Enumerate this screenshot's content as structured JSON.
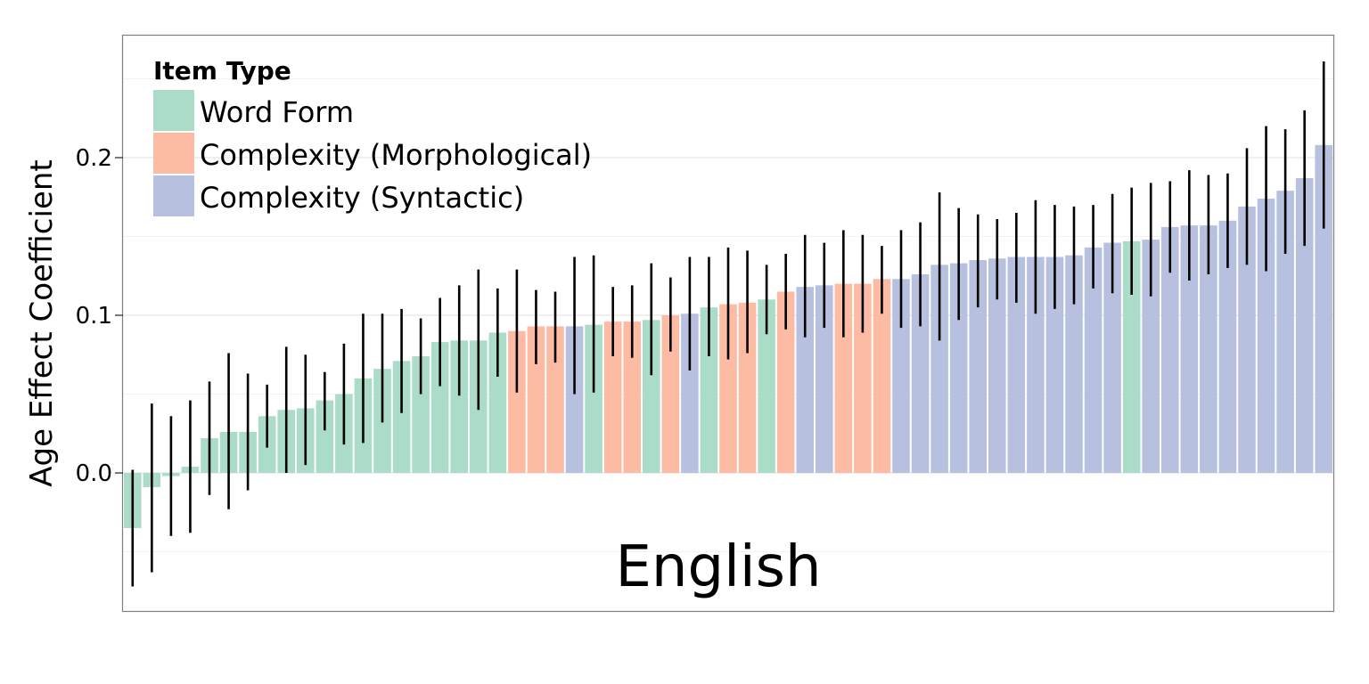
{
  "chart_data": {
    "type": "bar",
    "panel_label": "English",
    "ylabel": "Age Effect Coefficient",
    "xlabel": "",
    "ylim": [
      -0.088,
      0.277
    ],
    "yticks": [
      0.0,
      0.1,
      0.2
    ],
    "ytick_labels": [
      "0.0",
      "0.1",
      "0.2"
    ],
    "grid": true,
    "legend": {
      "title": "Item Type",
      "placement": "top-left",
      "entries": [
        {
          "key": "word_form",
          "label": "Word Form",
          "color": "#aadcc8"
        },
        {
          "key": "morphological",
          "label": "Complexity (Morphological)",
          "color": "#fdbba4"
        },
        {
          "key": "syntactic",
          "label": "Complexity (Syntactic)",
          "color": "#b7c1df"
        }
      ]
    },
    "colors": {
      "word_form": "#aadcc8",
      "morphological": "#fdbba4",
      "syntactic": "#b7c1df",
      "error_bar": "#000000",
      "grid": "#ebebeb",
      "panel_border": "#7f7f7f"
    },
    "bars": [
      {
        "type": "word_form",
        "value": -0.035,
        "lo": -0.072,
        "hi": 0.002
      },
      {
        "type": "word_form",
        "value": -0.009,
        "lo": -0.063,
        "hi": 0.044
      },
      {
        "type": "word_form",
        "value": -0.002,
        "lo": -0.04,
        "hi": 0.036
      },
      {
        "type": "word_form",
        "value": 0.004,
        "lo": -0.038,
        "hi": 0.046
      },
      {
        "type": "word_form",
        "value": 0.022,
        "lo": -0.014,
        "hi": 0.058
      },
      {
        "type": "word_form",
        "value": 0.026,
        "lo": -0.023,
        "hi": 0.076
      },
      {
        "type": "word_form",
        "value": 0.026,
        "lo": -0.011,
        "hi": 0.063
      },
      {
        "type": "word_form",
        "value": 0.036,
        "lo": 0.016,
        "hi": 0.056
      },
      {
        "type": "word_form",
        "value": 0.04,
        "lo": 0.0,
        "hi": 0.08
      },
      {
        "type": "word_form",
        "value": 0.041,
        "lo": 0.005,
        "hi": 0.075
      },
      {
        "type": "word_form",
        "value": 0.046,
        "lo": 0.027,
        "hi": 0.064
      },
      {
        "type": "word_form",
        "value": 0.05,
        "lo": 0.018,
        "hi": 0.082
      },
      {
        "type": "word_form",
        "value": 0.06,
        "lo": 0.019,
        "hi": 0.101
      },
      {
        "type": "word_form",
        "value": 0.066,
        "lo": 0.032,
        "hi": 0.101
      },
      {
        "type": "word_form",
        "value": 0.071,
        "lo": 0.038,
        "hi": 0.104
      },
      {
        "type": "word_form",
        "value": 0.074,
        "lo": 0.05,
        "hi": 0.098
      },
      {
        "type": "word_form",
        "value": 0.083,
        "lo": 0.055,
        "hi": 0.111
      },
      {
        "type": "word_form",
        "value": 0.084,
        "lo": 0.049,
        "hi": 0.119
      },
      {
        "type": "word_form",
        "value": 0.084,
        "lo": 0.04,
        "hi": 0.129
      },
      {
        "type": "word_form",
        "value": 0.089,
        "lo": 0.061,
        "hi": 0.117
      },
      {
        "type": "morphological",
        "value": 0.09,
        "lo": 0.051,
        "hi": 0.129
      },
      {
        "type": "morphological",
        "value": 0.093,
        "lo": 0.069,
        "hi": 0.116
      },
      {
        "type": "morphological",
        "value": 0.093,
        "lo": 0.07,
        "hi": 0.115
      },
      {
        "type": "syntactic",
        "value": 0.093,
        "lo": 0.05,
        "hi": 0.137
      },
      {
        "type": "word_form",
        "value": 0.094,
        "lo": 0.051,
        "hi": 0.138
      },
      {
        "type": "morphological",
        "value": 0.096,
        "lo": 0.074,
        "hi": 0.118
      },
      {
        "type": "morphological",
        "value": 0.096,
        "lo": 0.073,
        "hi": 0.119
      },
      {
        "type": "word_form",
        "value": 0.097,
        "lo": 0.062,
        "hi": 0.133
      },
      {
        "type": "morphological",
        "value": 0.1,
        "lo": 0.077,
        "hi": 0.124
      },
      {
        "type": "syntactic",
        "value": 0.101,
        "lo": 0.065,
        "hi": 0.137
      },
      {
        "type": "word_form",
        "value": 0.105,
        "lo": 0.074,
        "hi": 0.137
      },
      {
        "type": "morphological",
        "value": 0.107,
        "lo": 0.072,
        "hi": 0.143
      },
      {
        "type": "morphological",
        "value": 0.108,
        "lo": 0.076,
        "hi": 0.141
      },
      {
        "type": "word_form",
        "value": 0.11,
        "lo": 0.088,
        "hi": 0.132
      },
      {
        "type": "morphological",
        "value": 0.115,
        "lo": 0.091,
        "hi": 0.139
      },
      {
        "type": "syntactic",
        "value": 0.118,
        "lo": 0.086,
        "hi": 0.151
      },
      {
        "type": "syntactic",
        "value": 0.119,
        "lo": 0.092,
        "hi": 0.146
      },
      {
        "type": "morphological",
        "value": 0.12,
        "lo": 0.086,
        "hi": 0.154
      },
      {
        "type": "morphological",
        "value": 0.12,
        "lo": 0.089,
        "hi": 0.151
      },
      {
        "type": "morphological",
        "value": 0.123,
        "lo": 0.101,
        "hi": 0.144
      },
      {
        "type": "syntactic",
        "value": 0.123,
        "lo": 0.092,
        "hi": 0.154
      },
      {
        "type": "syntactic",
        "value": 0.126,
        "lo": 0.093,
        "hi": 0.159
      },
      {
        "type": "syntactic",
        "value": 0.132,
        "lo": 0.084,
        "hi": 0.178
      },
      {
        "type": "syntactic",
        "value": 0.133,
        "lo": 0.097,
        "hi": 0.168
      },
      {
        "type": "syntactic",
        "value": 0.135,
        "lo": 0.105,
        "hi": 0.164
      },
      {
        "type": "syntactic",
        "value": 0.136,
        "lo": 0.11,
        "hi": 0.161
      },
      {
        "type": "syntactic",
        "value": 0.137,
        "lo": 0.108,
        "hi": 0.165
      },
      {
        "type": "syntactic",
        "value": 0.137,
        "lo": 0.101,
        "hi": 0.173
      },
      {
        "type": "syntactic",
        "value": 0.137,
        "lo": 0.104,
        "hi": 0.17
      },
      {
        "type": "syntactic",
        "value": 0.138,
        "lo": 0.107,
        "hi": 0.169
      },
      {
        "type": "syntactic",
        "value": 0.143,
        "lo": 0.117,
        "hi": 0.17
      },
      {
        "type": "syntactic",
        "value": 0.146,
        "lo": 0.114,
        "hi": 0.177
      },
      {
        "type": "word_form",
        "value": 0.147,
        "lo": 0.113,
        "hi": 0.181
      },
      {
        "type": "syntactic",
        "value": 0.148,
        "lo": 0.112,
        "hi": 0.184
      },
      {
        "type": "syntactic",
        "value": 0.156,
        "lo": 0.127,
        "hi": 0.185
      },
      {
        "type": "syntactic",
        "value": 0.157,
        "lo": 0.122,
        "hi": 0.192
      },
      {
        "type": "syntactic",
        "value": 0.157,
        "lo": 0.126,
        "hi": 0.189
      },
      {
        "type": "syntactic",
        "value": 0.16,
        "lo": 0.13,
        "hi": 0.19
      },
      {
        "type": "syntactic",
        "value": 0.169,
        "lo": 0.132,
        "hi": 0.206
      },
      {
        "type": "syntactic",
        "value": 0.174,
        "lo": 0.128,
        "hi": 0.22
      },
      {
        "type": "syntactic",
        "value": 0.179,
        "lo": 0.139,
        "hi": 0.218
      },
      {
        "type": "syntactic",
        "value": 0.187,
        "lo": 0.144,
        "hi": 0.23
      },
      {
        "type": "syntactic",
        "value": 0.208,
        "lo": 0.155,
        "hi": 0.261
      }
    ]
  }
}
